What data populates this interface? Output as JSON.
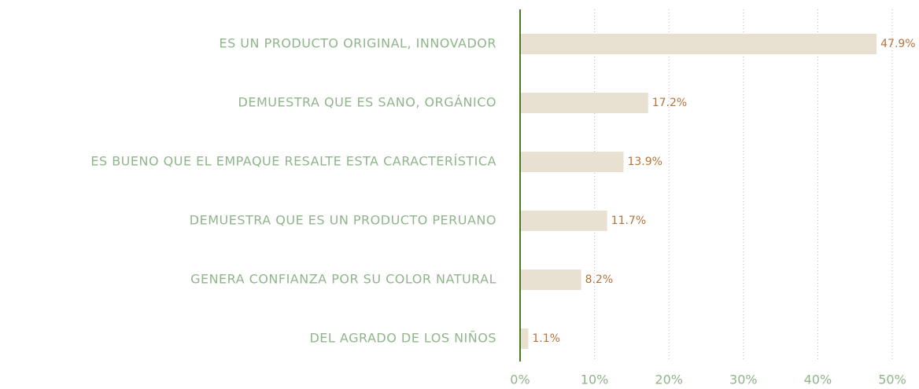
{
  "chart_data": {
    "type": "bar",
    "orientation": "horizontal",
    "categories": [
      "ES UN PRODUCTO ORIGINAL, INNOVADOR",
      "DEMUESTRA QUE ES SANO, ORGÁNICO",
      "ES BUENO QUE EL EMPAQUE RESALTE ESTA CARACTERÍSTICA",
      "DEMUESTRA QUE ES UN PRODUCTO PERUANO",
      "GENERA CONFIANZA POR SU COLOR NATURAL",
      "DEL AGRADO DE LOS NIÑOS"
    ],
    "values": [
      47.9,
      17.2,
      13.9,
      11.7,
      8.2,
      1.1
    ],
    "value_labels": [
      "47.9%",
      "17.2%",
      "13.9%",
      "11.7%",
      "8.2%",
      "1.1%"
    ],
    "color": "#e8e0d0",
    "xlim": [
      0,
      50
    ],
    "xticks": [
      {
        "value": 0,
        "label": "0%"
      },
      {
        "value": 10,
        "label": "10%"
      },
      {
        "value": 20,
        "label": "20%"
      },
      {
        "value": 30,
        "label": "30%"
      },
      {
        "value": 40,
        "label": "40%"
      },
      {
        "value": 50,
        "label": "50%"
      }
    ],
    "grid": true
  }
}
